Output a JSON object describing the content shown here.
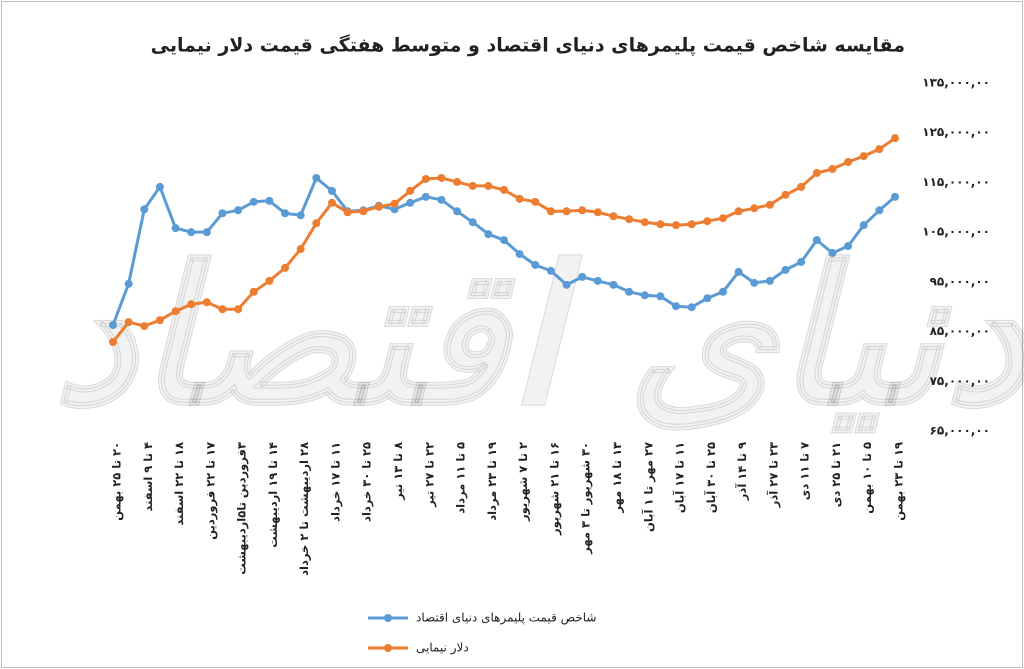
{
  "chart_data": {
    "type": "line",
    "title": "مقایسه شاخص قیمت پلیمرهای دنیای اقتصاد و متوسط هفتگی قیمت دلار نیمایی",
    "watermark": "دنیای اقتصاد",
    "categories": [
      "۲۰ تا ۲۵ بهمن",
      null,
      "۴ تا ۹ اسفند",
      null,
      "۱۸ تا ۲۲ اسفند",
      null,
      "۱۷ تا ۲۲ فروردین",
      null,
      "۳فروردین تا۵اردیبهشت",
      null,
      "۱۴ تا ۱۹ اردیبهشت",
      null,
      "۲۸ اردیبهشت تا ۲ خرداد",
      null,
      "۱۱ تا ۱۷ خرداد",
      null,
      "۲۵ تا ۳۰ خرداد",
      null,
      "۸ تا ۱۳ تیر",
      null,
      "۲۲ تا ۲۷ تیر",
      null,
      "۵ تا ۱۱ مرداد",
      null,
      "۱۹ تا ۲۳ مرداد",
      null,
      "۲ تا ۷ شهریور",
      null,
      "۱۶ تا ۲۱ شهریور",
      null,
      "۳۰ شهریور تا ۳ مهر",
      null,
      "۱۳ تا ۱۸ مهر",
      null,
      "۲۷ مهر تا ۱ آبان",
      null,
      "۱۱ تا ۱۷ آبان",
      null,
      "۲۵ تا ۳۰ آبان",
      null,
      "۹ تا ۱۴ آذر",
      null,
      "۲۳ تا ۲۷ آذر",
      null,
      "۷ تا ۱۱ دی",
      null,
      "۲۱ تا ۲۵ دی",
      null,
      "۵ تا ۱۰ بهمن",
      null,
      "۱۹ تا ۲۳ بهمن"
    ],
    "series": [
      {
        "name": "شاخص قیمت پلیمرهای دنیای اقتصاد",
        "color": "#5b9bd5",
        "values": [
          8630000,
          9460000,
          10960000,
          11410000,
          10580000,
          10500000,
          10500000,
          10880000,
          10940000,
          11110000,
          11130000,
          10880000,
          10840000,
          11590000,
          11330000,
          10920000,
          10940000,
          11030000,
          10960000,
          11090000,
          11210000,
          11150000,
          10920000,
          10700000,
          10460000,
          10340000,
          10060000,
          9840000,
          9720000,
          9440000,
          9600000,
          9520000,
          9440000,
          9300000,
          9230000,
          9210000,
          9010000,
          8990000,
          9170000,
          9300000,
          9700000,
          9480000,
          9520000,
          9740000,
          9900000,
          10340000,
          10080000,
          10220000,
          10640000,
          10940000,
          11210000
        ]
      },
      {
        "name": "دلار نیمایی",
        "color": "#ed7d31",
        "values": [
          8290000,
          8690000,
          8610000,
          8730000,
          8910000,
          9050000,
          9090000,
          8950000,
          8950000,
          9300000,
          9520000,
          9780000,
          10160000,
          10680000,
          11090000,
          10900000,
          10920000,
          11010000,
          11070000,
          11330000,
          11570000,
          11590000,
          11510000,
          11430000,
          11430000,
          11350000,
          11170000,
          11110000,
          10920000,
          10920000,
          10940000,
          10900000,
          10820000,
          10760000,
          10700000,
          10660000,
          10640000,
          10660000,
          10720000,
          10780000,
          10920000,
          10980000,
          11050000,
          11250000,
          11410000,
          11690000,
          11770000,
          11910000,
          12030000,
          12170000,
          12390000
        ]
      }
    ],
    "ylim": [
      6500000,
      13500000
    ],
    "yticks": [
      {
        "value": 13500000,
        "label": "۱۳۵,۰۰۰,۰۰"
      },
      {
        "value": 12500000,
        "label": "۱۲۵,۰۰۰,۰۰"
      },
      {
        "value": 11500000,
        "label": "۱۱۵,۰۰۰,۰۰"
      },
      {
        "value": 10500000,
        "label": "۱۰۵,۰۰۰,۰۰"
      },
      {
        "value": 9500000,
        "label": "۹۵,۰۰۰,۰۰"
      },
      {
        "value": 8500000,
        "label": "۸۵,۰۰۰,۰۰"
      },
      {
        "value": 7500000,
        "label": "۷۵,۰۰۰,۰۰"
      },
      {
        "value": 6500000,
        "label": "۶۵,۰۰۰,۰۰"
      }
    ],
    "grid": false,
    "legend": "bottom"
  }
}
